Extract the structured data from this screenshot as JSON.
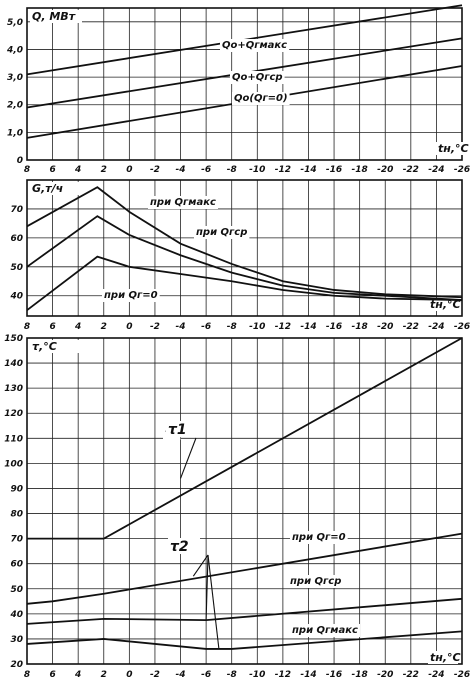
{
  "chart_data": [
    {
      "type": "line",
      "ylabel": "Q, МВт",
      "xlabel": "tн,°С",
      "x": [
        8,
        6,
        4,
        2,
        0,
        -2,
        -4,
        -6,
        -8,
        -10,
        -12,
        -14,
        -16,
        -18,
        -20,
        -22,
        -24,
        -26
      ],
      "x_ticks": [
        "8",
        "6",
        "4",
        "2",
        "0",
        "-2",
        "-4",
        "-6",
        "-8",
        "-10",
        "-12",
        "-14",
        "-16",
        "-18",
        "-20",
        "-22",
        "-24",
        "-26"
      ],
      "ylim": [
        0,
        5.5
      ],
      "y_ticks": [
        "0",
        "1,0",
        "2,0",
        "3,0",
        "4,0",
        "5,0"
      ],
      "grid": true,
      "series": [
        {
          "name": "Qо+Qгмакс",
          "x": [
            8,
            -26
          ],
          "values": [
            3.1,
            5.6
          ]
        },
        {
          "name": "Qо+Qгср",
          "x": [
            8,
            -26
          ],
          "values": [
            1.9,
            4.4
          ]
        },
        {
          "name": "Qо(Qг=0)",
          "x": [
            8,
            -26
          ],
          "values": [
            0.8,
            3.4
          ]
        }
      ]
    },
    {
      "type": "line",
      "ylabel": "G,т/ч",
      "xlabel": "tн,°С",
      "x": [
        8,
        6,
        4,
        2,
        0,
        -2,
        -4,
        -6,
        -8,
        -10,
        -12,
        -14,
        -16,
        -18,
        -20,
        -22,
        -24,
        -26
      ],
      "x_ticks": [
        "8",
        "6",
        "4",
        "2",
        "0",
        "-2",
        "-4",
        "-6",
        "-8",
        "-10",
        "-12",
        "-14",
        "-16",
        "-18",
        "-20",
        "-22",
        "-24",
        "-26"
      ],
      "ylim": [
        33,
        80
      ],
      "y_ticks": [
        "40",
        "50",
        "60",
        "70"
      ],
      "grid": true,
      "series": [
        {
          "name": "при Qгмакс",
          "x": [
            8,
            2.5,
            0,
            -4,
            -8,
            -12,
            -16,
            -20,
            -26
          ],
          "values": [
            64,
            77.5,
            69,
            58,
            51,
            45,
            42,
            40.5,
            39.5
          ]
        },
        {
          "name": "при Qгср",
          "x": [
            8,
            2.5,
            0,
            -4,
            -8,
            -12,
            -16,
            -20,
            -26
          ],
          "values": [
            50,
            67.5,
            61,
            54,
            48,
            43.5,
            41,
            40,
            38.5
          ]
        },
        {
          "name": "при Qг=0",
          "x": [
            8,
            2.5,
            0,
            -4,
            -8,
            -12,
            -16,
            -20,
            -26
          ],
          "values": [
            35,
            53.5,
            50,
            47.5,
            45,
            42,
            40,
            39,
            38.5
          ]
        }
      ]
    },
    {
      "type": "line",
      "ylabel": "τ,°С",
      "xlabel": "tн,°С",
      "x": [
        8,
        6,
        4,
        2,
        0,
        -2,
        -4,
        -6,
        -8,
        -10,
        -12,
        -14,
        -16,
        -18,
        -20,
        -22,
        -24,
        -26
      ],
      "x_ticks": [
        "8",
        "6",
        "4",
        "2",
        "0",
        "-2",
        "-4",
        "-6",
        "-8",
        "-10",
        "-12",
        "-14",
        "-16",
        "-18",
        "-20",
        "-22",
        "-24",
        "-26"
      ],
      "ylim": [
        20,
        150
      ],
      "y_ticks": [
        "20",
        "30",
        "40",
        "50",
        "60",
        "70",
        "80",
        "90",
        "100",
        "110",
        "120",
        "130",
        "140",
        "150"
      ],
      "grid": true,
      "series": [
        {
          "name": "τ1",
          "x": [
            8,
            2,
            -26
          ],
          "values": [
            70,
            70,
            150
          ]
        },
        {
          "name": "при Qг=0",
          "x": [
            8,
            6,
            2,
            -26
          ],
          "values": [
            44,
            45,
            48,
            72
          ]
        },
        {
          "name": "при Qгср",
          "x": [
            8,
            2,
            -6,
            -26
          ],
          "values": [
            36,
            38,
            37.5,
            46
          ]
        },
        {
          "name": "при Qгмакс",
          "x": [
            8,
            2,
            -6,
            -8,
            -26
          ],
          "values": [
            28,
            30,
            26,
            26,
            33
          ]
        }
      ],
      "annotations": [
        "τ1",
        "τ2"
      ]
    }
  ]
}
